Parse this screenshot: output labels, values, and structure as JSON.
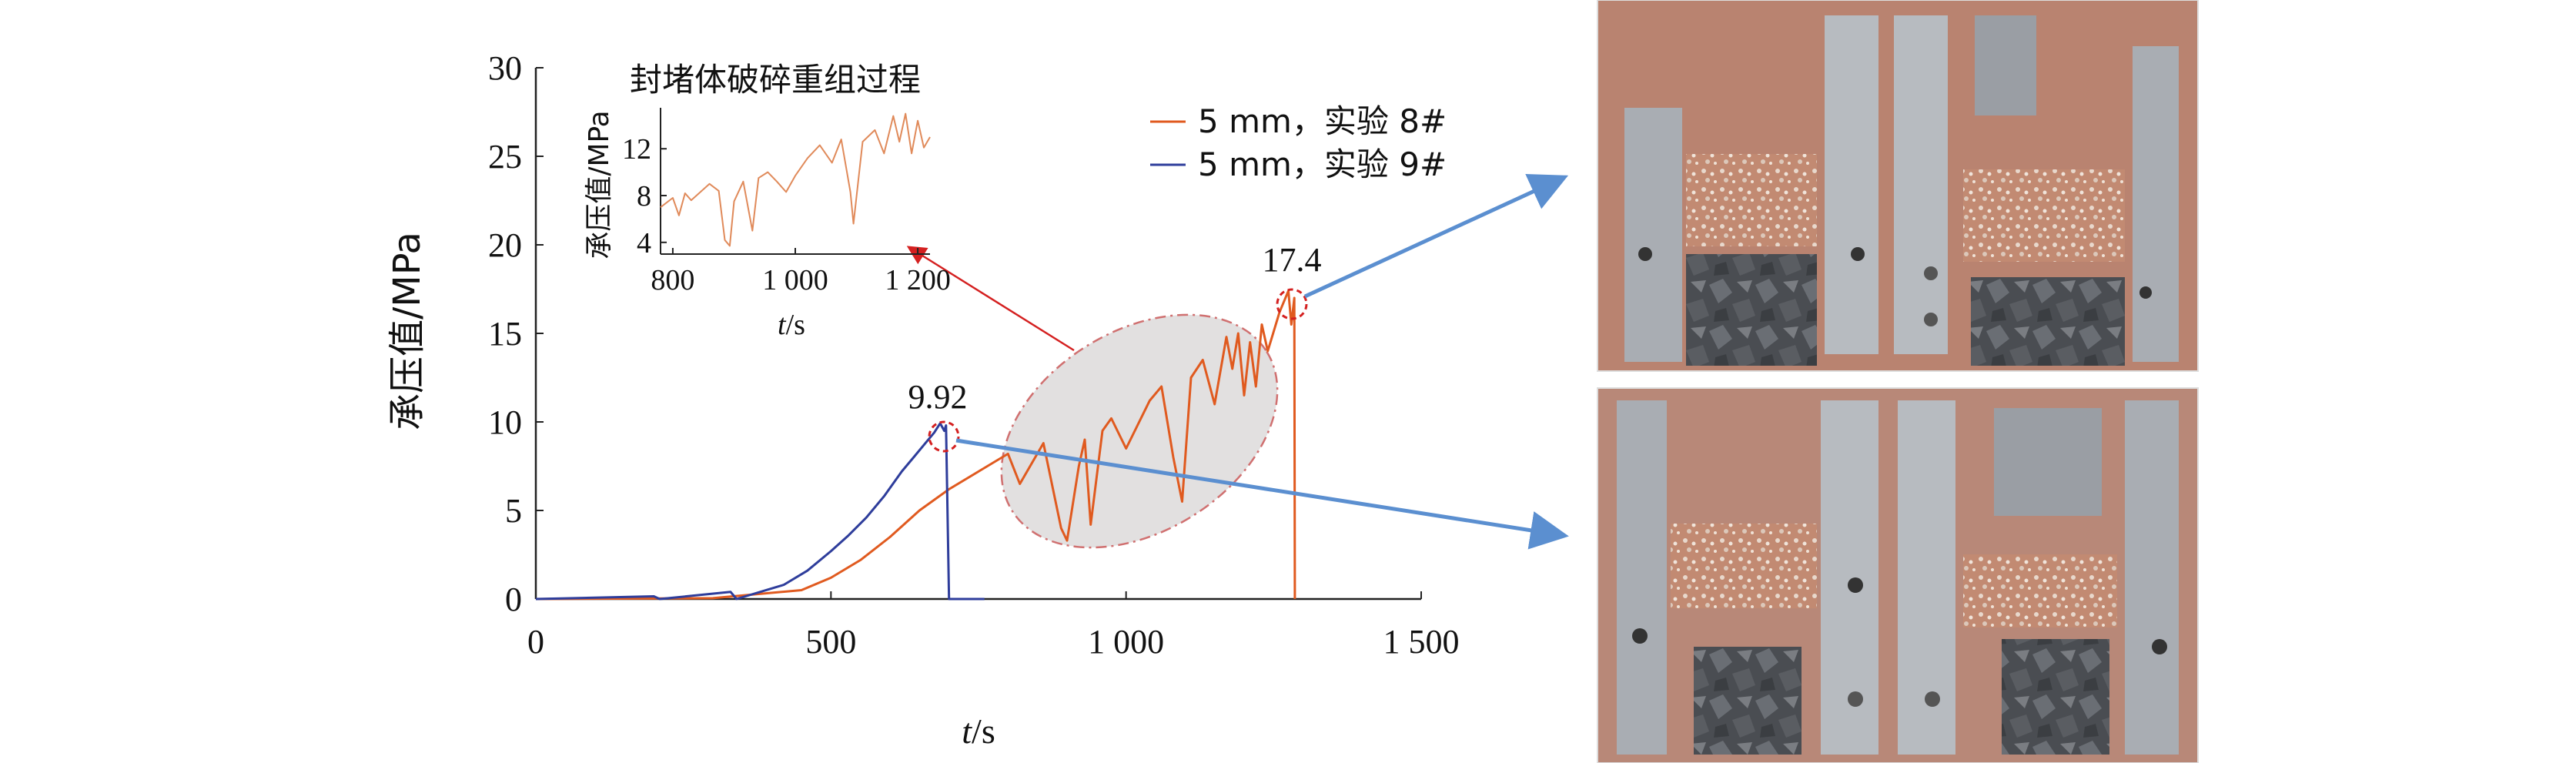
{
  "chart_data": {
    "type": "line",
    "xlabel_italic": "t",
    "xlabel_rest": "/s",
    "ylabel": "承压值/MPa",
    "xlim": [
      0,
      1500
    ],
    "ylim": [
      0,
      30
    ],
    "xticks": [
      0,
      500,
      1000,
      1500
    ],
    "xtick_labels": [
      "0",
      "500",
      "1 000",
      "1 500"
    ],
    "yticks": [
      0,
      5,
      10,
      15,
      20,
      25,
      30
    ],
    "ytick_labels": [
      "0",
      "5",
      "10",
      "15",
      "20",
      "25",
      "30"
    ],
    "legend_position": "top-right",
    "series": [
      {
        "name": "5 mm，实验 8#",
        "color": "#e05a1f",
        "x": [
          0,
          300,
          450,
          500,
          550,
          600,
          650,
          700,
          750,
          800,
          820,
          860,
          890,
          900,
          920,
          930,
          940,
          960,
          975,
          1000,
          1040,
          1060,
          1080,
          1095,
          1110,
          1130,
          1150,
          1170,
          1180,
          1190,
          1200,
          1210,
          1220,
          1230,
          1240,
          1260,
          1275,
          1280,
          1285,
          1286
        ],
        "y": [
          0,
          0.05,
          0.5,
          1.2,
          2.2,
          3.5,
          5.0,
          6.2,
          7.2,
          8.2,
          6.5,
          8.8,
          4.0,
          3.3,
          7.5,
          9.0,
          4.2,
          9.5,
          10.2,
          8.5,
          11.2,
          12.0,
          8.0,
          5.5,
          12.5,
          13.5,
          11.0,
          14.8,
          13.0,
          15.0,
          11.5,
          14.5,
          12.0,
          15.5,
          14.0,
          16.2,
          17.4,
          15.5,
          17.0,
          0
        ]
      },
      {
        "name": "5 mm，实验 9#",
        "color": "#2e3d9b",
        "x": [
          0,
          200,
          210,
          330,
          340,
          420,
          460,
          500,
          530,
          560,
          590,
          620,
          640,
          660,
          675,
          685,
          692,
          695,
          700,
          760
        ],
        "y": [
          0,
          0.15,
          0,
          0.4,
          0,
          0.8,
          1.6,
          2.7,
          3.6,
          4.6,
          5.8,
          7.2,
          8.0,
          8.8,
          9.4,
          9.92,
          9.5,
          9.8,
          0,
          0
        ]
      }
    ],
    "annotations": [
      "9.92",
      "17.4"
    ],
    "inset": {
      "title": "封堵体破碎重组过程",
      "ylabel": "承压值/MPa",
      "xlabel_italic": "t",
      "xlabel_rest": "/s",
      "xlim": [
        780,
        1220
      ],
      "ylim": [
        3,
        15.5
      ],
      "xticks": [
        800,
        1000,
        1200
      ],
      "xtick_labels": [
        "800",
        "1 000",
        "1 200"
      ],
      "yticks": [
        4,
        8,
        12
      ],
      "ytick_labels": [
        "4",
        "8",
        "12"
      ],
      "series_color": "#e08a5a",
      "x": [
        780,
        800,
        810,
        820,
        830,
        860,
        875,
        885,
        893,
        900,
        915,
        930,
        940,
        955,
        970,
        985,
        1000,
        1020,
        1040,
        1060,
        1075,
        1090,
        1095,
        1110,
        1130,
        1145,
        1160,
        1170,
        1180,
        1190,
        1200,
        1210,
        1220
      ],
      "y": [
        7.0,
        7.8,
        6.3,
        8.2,
        7.6,
        9.0,
        8.4,
        4.2,
        3.7,
        7.5,
        9.2,
        5.0,
        9.5,
        10.0,
        9.2,
        8.3,
        9.7,
        11.2,
        12.3,
        10.8,
        12.8,
        8.3,
        5.6,
        12.6,
        13.6,
        11.6,
        14.8,
        12.6,
        15.0,
        11.6,
        14.4,
        12.1,
        13.0
      ]
    }
  },
  "photos": [
    {
      "name": "photo-experiment-8"
    },
    {
      "name": "photo-experiment-9"
    }
  ]
}
